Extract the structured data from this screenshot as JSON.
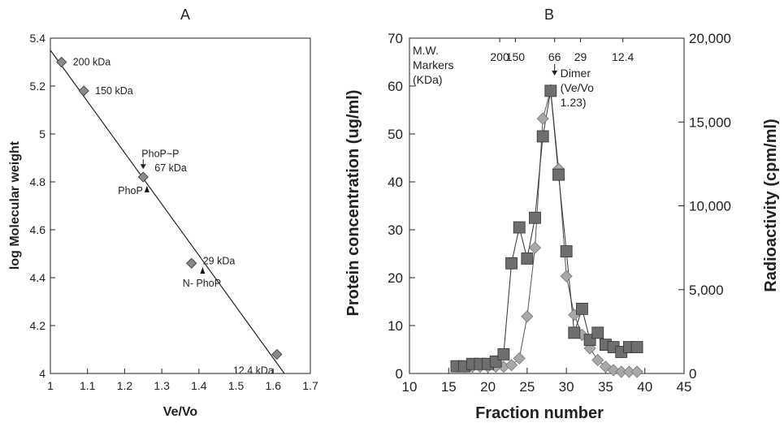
{
  "chart_data": [
    {
      "type": "scatter",
      "title": "A",
      "xlabel": "Ve/Vo",
      "ylabel": "log Molecular weight",
      "xlim": [
        1,
        1.7
      ],
      "ylim": [
        4,
        5.4
      ],
      "xticks": [
        "1",
        "1.1",
        "1.2",
        "1.3",
        "1.4",
        "1.5",
        "1.6",
        "1.7"
      ],
      "yticks": [
        "4",
        "4.2",
        "4.4",
        "4.6",
        "4.8",
        "5",
        "5.2",
        "5.4"
      ],
      "points": [
        {
          "x": 1.03,
          "y": 5.3,
          "label": "200 kDa"
        },
        {
          "x": 1.09,
          "y": 5.18,
          "label": "150 kDa"
        },
        {
          "x": 1.25,
          "y": 4.82,
          "label": "67 kDa"
        },
        {
          "x": 1.38,
          "y": 4.46,
          "label": "29 kDa"
        },
        {
          "x": 1.61,
          "y": 4.08,
          "label": "12.4 kDa"
        }
      ],
      "fit_line": {
        "x": [
          1.0,
          1.63
        ],
        "y": [
          5.35,
          4.0
        ]
      },
      "annotations": [
        {
          "text": "PhoP~P",
          "x": 1.25,
          "y": 4.86,
          "marker": "down-arrow"
        },
        {
          "text": "PhoP",
          "x": 1.26,
          "y": 4.77,
          "marker": "up-triangle"
        },
        {
          "text": "N- PhoP",
          "x": 1.41,
          "y": 4.43,
          "marker": "up-triangle"
        }
      ],
      "grid": false
    },
    {
      "type": "line",
      "title": "B",
      "xlabel": "Fraction number",
      "ylabel": "Protein concentration (ug/ml)",
      "y2label": "Radioactivity (cpm/ml)",
      "xlim": [
        10,
        45
      ],
      "ylim": [
        0,
        70
      ],
      "y2lim": [
        0,
        20000
      ],
      "xticks": [
        "10",
        "15",
        "20",
        "25",
        "30",
        "35",
        "40",
        "45"
      ],
      "yticks": [
        "0",
        "10",
        "20",
        "30",
        "40",
        "50",
        "60",
        "70"
      ],
      "y2ticks": [
        "0",
        "5,000",
        "10,000",
        "15,000",
        "20,000"
      ],
      "series": [
        {
          "axis": "left",
          "marker": "square",
          "color": "#6e6e6e",
          "x": [
            16,
            17,
            18,
            19,
            20,
            21,
            22,
            23,
            24,
            25,
            26,
            27,
            28,
            29,
            30,
            31,
            32,
            33,
            34,
            35,
            36,
            37,
            38,
            39
          ],
          "y": [
            1.5,
            1.5,
            2,
            2,
            2,
            2.5,
            4,
            23,
            30.5,
            24,
            32.5,
            49.5,
            59,
            41.5,
            25.5,
            8.5,
            13.5,
            7,
            8.5,
            6,
            5.5,
            4.5,
            5.5,
            5.5
          ]
        },
        {
          "axis": "right",
          "marker": "diamond",
          "color": "#a8a8a8",
          "x": [
            16,
            17,
            18,
            19,
            20,
            21,
            22,
            23,
            24,
            25,
            26,
            27,
            28,
            29,
            30,
            31,
            32,
            33,
            34,
            35,
            36,
            37,
            38,
            39
          ],
          "y": [
            400,
            400,
            400,
            400,
            400,
            400,
            400,
            500,
            900,
            3400,
            7500,
            15200,
            16900,
            12200,
            5800,
            3500,
            2300,
            1500,
            800,
            400,
            200,
            100,
            100,
            100
          ]
        }
      ],
      "top_axis": {
        "label": "M.W. Markers (KDa)",
        "label_lines": [
          "M.W.",
          "Markers",
          "(KDa)"
        ],
        "ticks": [
          {
            "text": "200",
            "x": 21.5
          },
          {
            "text": "150",
            "x": 23.5
          },
          {
            "text": "66",
            "x": 28.5
          },
          {
            "text": "29",
            "x": 31.8
          },
          {
            "text": "12.4",
            "x": 37.2
          }
        ]
      },
      "annotation": {
        "lines": [
          "Dimer",
          "(Ve/Vo",
          "1.23)"
        ],
        "x": 28.5,
        "marker": "down-arrow"
      },
      "grid": false
    }
  ]
}
